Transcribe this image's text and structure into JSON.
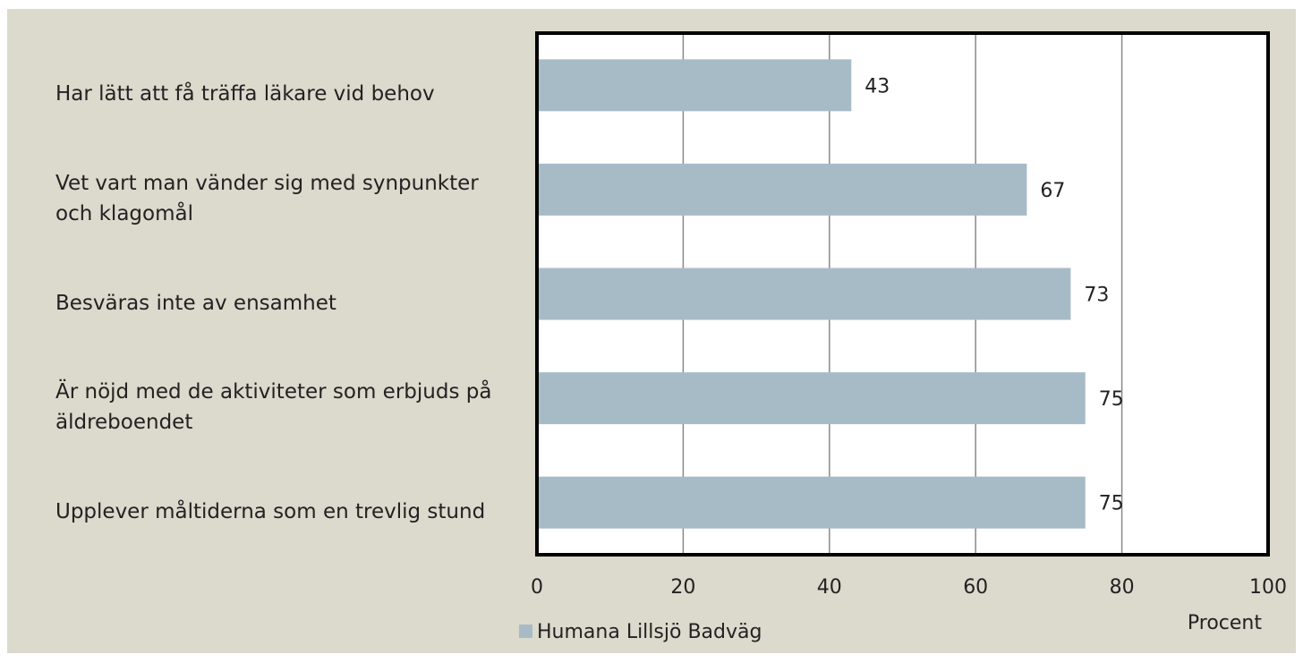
{
  "chart_data": {
    "type": "bar",
    "orientation": "horizontal",
    "categories": [
      "Har lätt att få träffa läkare vid behov",
      "Vet vart man vänder sig med synpunkter och klagomål",
      "Besväras inte av ensamhet",
      "Är nöjd med de aktiviteter som erbjuds på äldreboendet",
      "Upplever måltiderna som en trevlig stund"
    ],
    "series": [
      {
        "name": "Humana Lillsjö Badväg",
        "color": "#a7bbc7",
        "values": [
          43,
          67,
          73,
          75,
          75
        ]
      }
    ],
    "xlabel": "Procent",
    "xlim": [
      0,
      100
    ],
    "xticks": [
      0,
      20,
      40,
      60,
      80,
      100
    ],
    "grid": true,
    "legend": "bottom"
  }
}
